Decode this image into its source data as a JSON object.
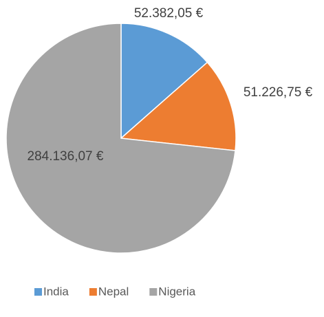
{
  "chart_data": {
    "type": "pie",
    "categories": [
      "India",
      "Nepal",
      "Nigeria"
    ],
    "values": [
      52382.05,
      51226.75,
      284136.07
    ],
    "value_labels": [
      "52.382,05 €",
      "51.226,75 €",
      "284.136,07 €"
    ],
    "colors": [
      "#5b9bd5",
      "#ed7d31",
      "#a5a5a5"
    ],
    "legend": "bottom"
  }
}
